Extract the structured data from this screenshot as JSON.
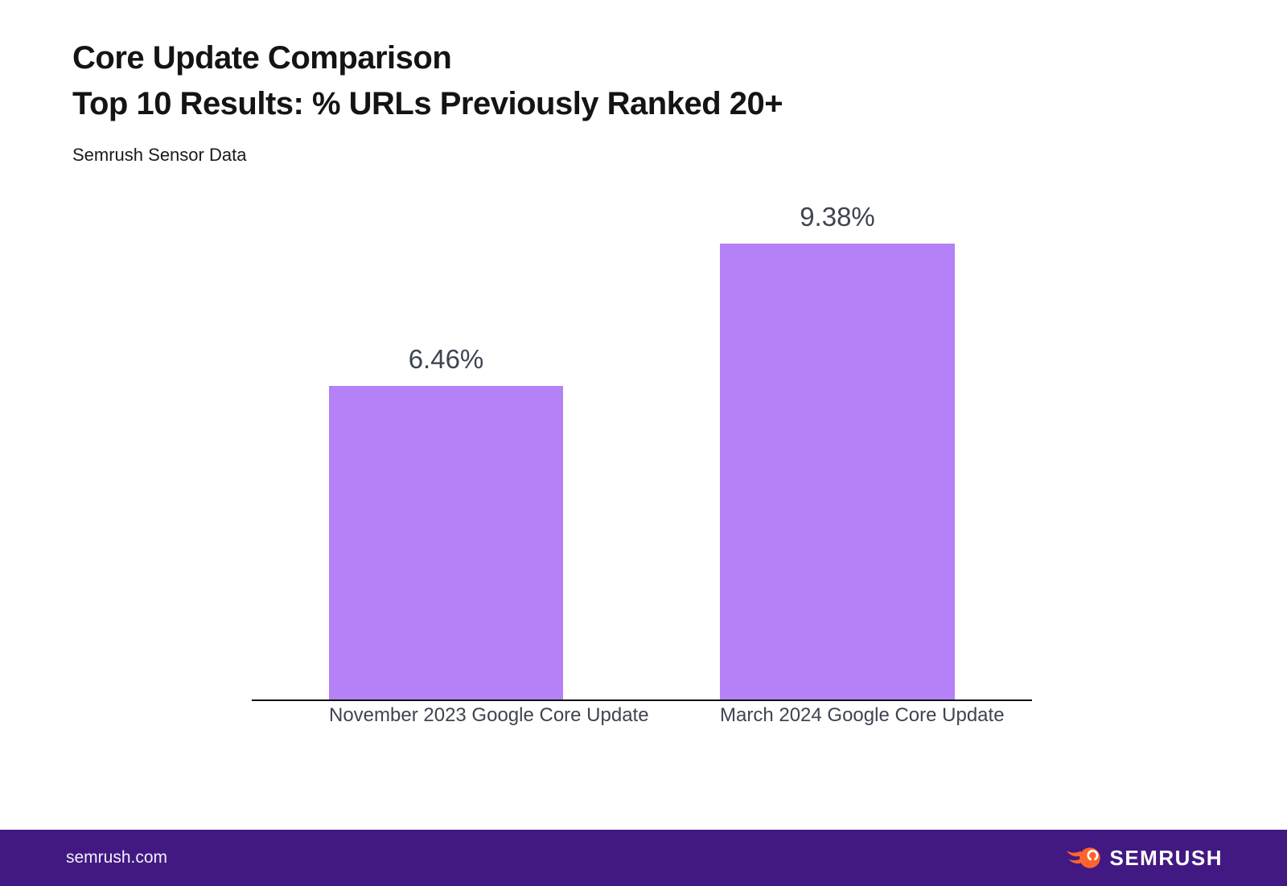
{
  "header": {
    "title_line1": "Core Update Comparison",
    "title_line2": "Top 10 Results: % URLs Previously Ranked 20+",
    "subtitle": "Semrush Sensor Data"
  },
  "chart_data": {
    "type": "bar",
    "title": "Core Update Comparison",
    "subtitle": "Top 10 Results: % URLs Previously Ranked 20+",
    "source": "Semrush Sensor Data",
    "categories": [
      "November 2023 Google Core Update",
      "March 2024 Google Core Update"
    ],
    "values": [
      6.46,
      9.38
    ],
    "value_labels": [
      "6.46%",
      "9.38%"
    ],
    "xlabel": "",
    "ylabel": "",
    "ylim": [
      0,
      9.38
    ],
    "grid": false,
    "legend": "none",
    "bar_color": "#b581f7",
    "axis_line_color": "#111111",
    "label_color": "#3e4451"
  },
  "footer": {
    "site": "semrush.com",
    "logo_text": "SEMRUSH",
    "background_color": "#421983",
    "logo_icon": "semrush-flame-icon",
    "logo_orange": "#ff642d"
  }
}
